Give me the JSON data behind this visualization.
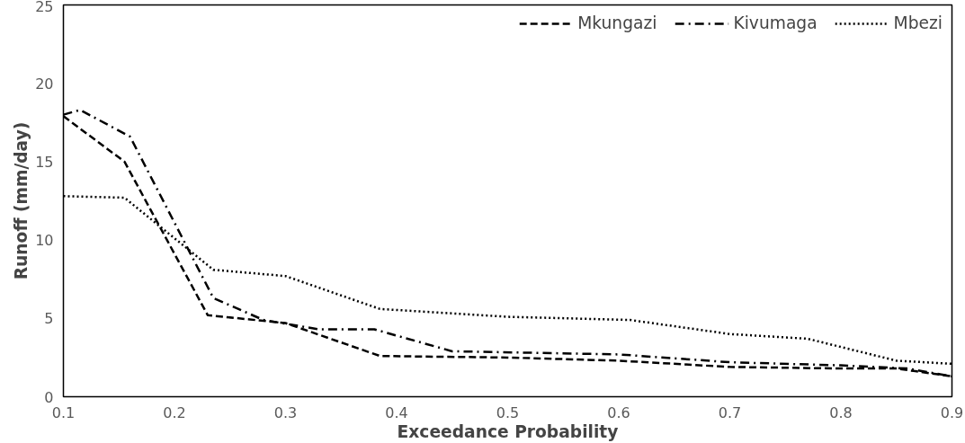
{
  "chart_data": {
    "type": "line",
    "xlabel": "Exceedance Probability",
    "ylabel": "Runoff (mm/day)",
    "xlim": [
      0.1,
      0.9
    ],
    "xticks": [
      0.1,
      0.2,
      0.3,
      0.4,
      0.5,
      0.6,
      0.7,
      0.8,
      0.9
    ],
    "ylim": [
      0,
      25
    ],
    "yticks": [
      0,
      5,
      10,
      15,
      20,
      25
    ],
    "grid": false,
    "legend": "top right",
    "series": [
      {
        "name": "Mkungazi",
        "color": "#000000",
        "line_style": "dashed",
        "x": [
          0.1,
          0.155,
          0.23,
          0.3,
          0.385,
          0.5,
          0.6,
          0.7,
          0.8,
          0.85,
          0.9
        ],
        "values": [
          17.9,
          15.0,
          5.2,
          4.7,
          2.6,
          2.5,
          2.3,
          1.9,
          1.8,
          1.8,
          1.3
        ]
      },
      {
        "name": "Kivumaga",
        "color": "#000000",
        "line_style": "dashdot",
        "x": [
          0.1,
          0.115,
          0.16,
          0.235,
          0.28,
          0.33,
          0.38,
          0.45,
          0.6,
          0.7,
          0.8,
          0.86,
          0.9
        ],
        "values": [
          18.0,
          18.3,
          16.6,
          6.3,
          4.9,
          4.3,
          4.3,
          2.9,
          2.7,
          2.2,
          2.0,
          1.8,
          1.3
        ]
      },
      {
        "name": "Mbezi",
        "color": "#000000",
        "line_style": "dotted",
        "x": [
          0.1,
          0.155,
          0.235,
          0.3,
          0.385,
          0.5,
          0.61,
          0.7,
          0.77,
          0.85,
          0.9
        ],
        "values": [
          12.8,
          12.7,
          8.1,
          7.7,
          5.6,
          5.1,
          4.9,
          4.0,
          3.7,
          2.3,
          2.1
        ]
      }
    ]
  }
}
